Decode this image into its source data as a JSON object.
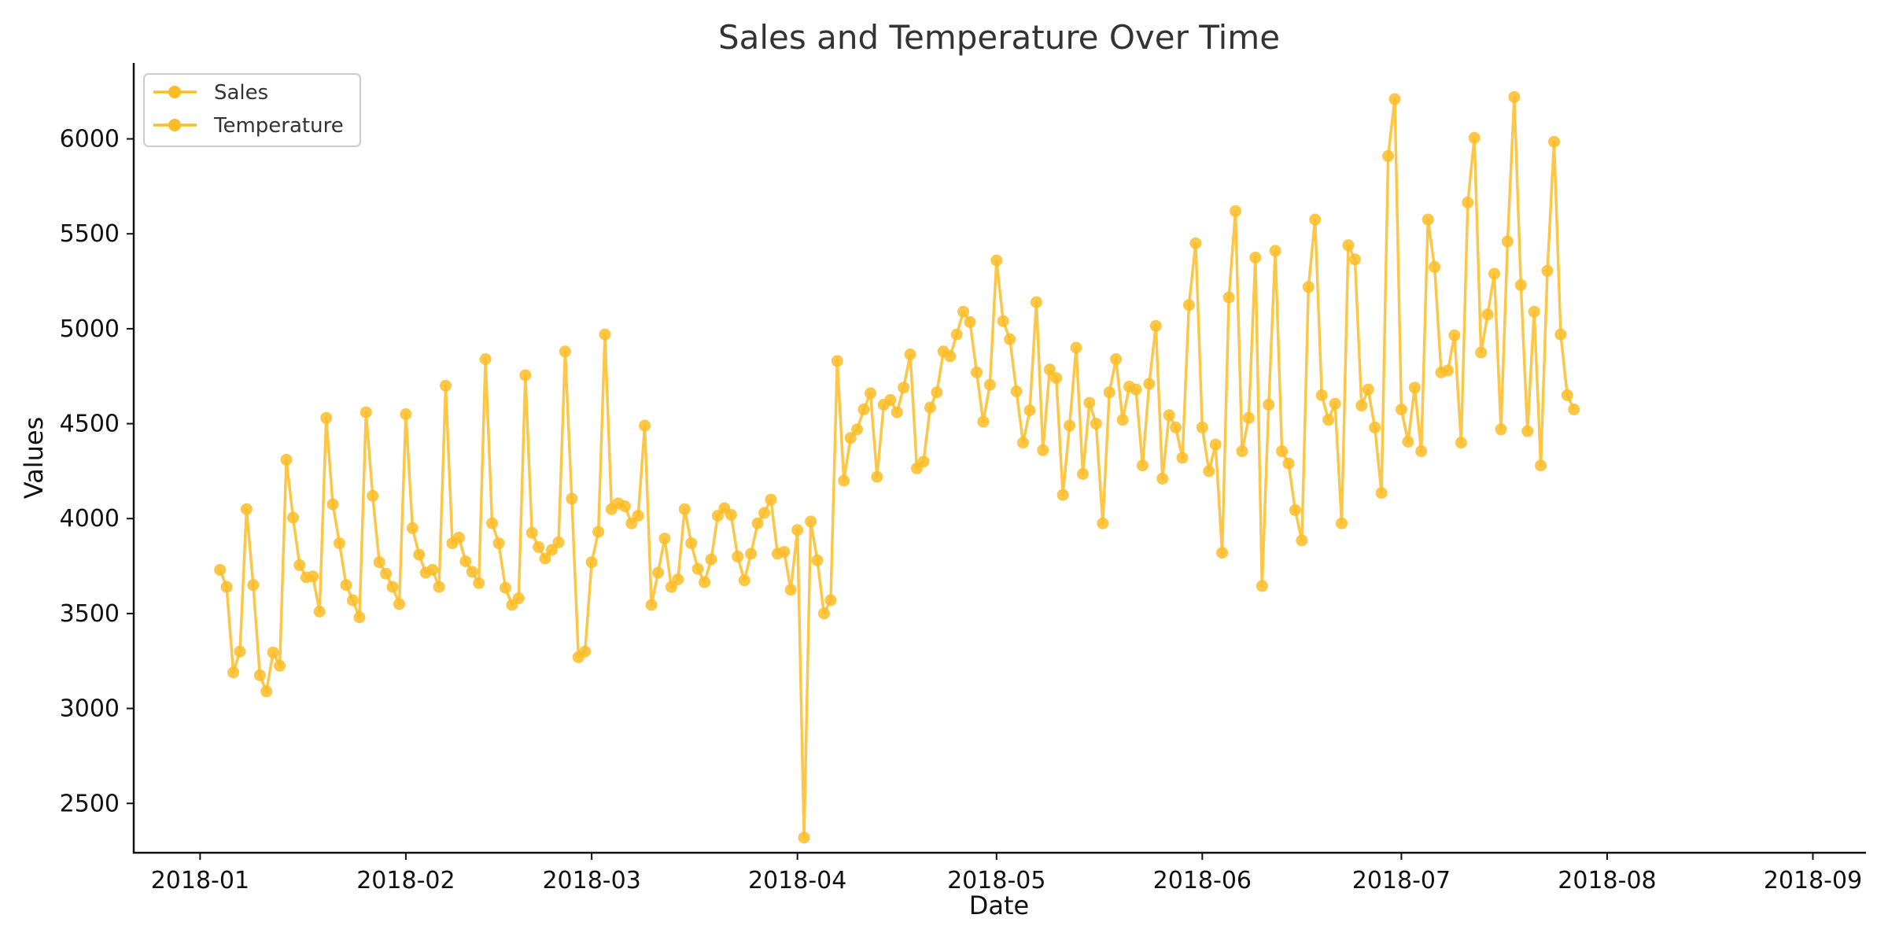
{
  "chart_data": {
    "type": "line",
    "title": "Sales and Temperature Over Time",
    "xlabel": "Date",
    "ylabel": "Values",
    "x_ticks": [
      "2018-01",
      "2018-02",
      "2018-03",
      "2018-04",
      "2018-05",
      "2018-06",
      "2018-07",
      "2018-08",
      "2018-09"
    ],
    "y_ticks": [
      2500,
      3000,
      3500,
      4000,
      4500,
      5000,
      5500,
      6000
    ],
    "xlim": [
      "2017-12-22",
      "2018-09-09"
    ],
    "ylim": [
      2240,
      6400
    ],
    "grid": false,
    "legend_position": "top-left",
    "legend": [
      "Sales",
      "Temperature"
    ],
    "series_color": "#FBBC27",
    "start_date": "2018-01-04",
    "series": [
      {
        "name": "Sales",
        "values": [
          3730,
          3640,
          3190,
          3300,
          4050,
          3650,
          3175,
          3090,
          3295,
          3225,
          4310,
          4005,
          3755,
          3690,
          3695,
          3510,
          4530,
          4075,
          3870,
          3650,
          3570,
          3480,
          4560,
          4120,
          3770,
          3710,
          3640,
          3550,
          4550,
          3950,
          3810,
          3715,
          3730,
          3640,
          4700,
          3870,
          3900,
          3775,
          3720,
          3660,
          4840,
          3975,
          3870,
          3635,
          3545,
          3580,
          4755,
          3925,
          3850,
          3790,
          3835,
          3875,
          4880,
          4105,
          3270,
          3300,
          3770,
          3930,
          4970,
          4050,
          4080,
          4065,
          3975,
          4015,
          4490,
          3545,
          3715,
          3895,
          3640,
          3680,
          4050,
          3870,
          3735,
          3665,
          3785,
          4015,
          4055,
          4020,
          3800,
          3675,
          3815,
          3975,
          4030,
          4100,
          3815,
          3825,
          3625,
          3940,
          2320,
          3985,
          3780,
          3500,
          3570,
          4830,
          4200,
          4425,
          4470,
          4575,
          4660,
          4220,
          4600,
          4625,
          4560,
          4690,
          4865,
          4265,
          4300,
          4585,
          4665,
          4880,
          4855,
          4970,
          5090,
          5035,
          4770,
          4510,
          4705,
          5360,
          5040,
          4945,
          4670,
          4400,
          4570,
          5140,
          4360,
          4785,
          4740,
          4125,
          4490,
          4900,
          4235,
          4610,
          4500,
          3975,
          4665,
          4840,
          4520,
          4695,
          4680,
          4280,
          4710,
          5015,
          4210,
          4545,
          4480,
          4320,
          5125,
          5450,
          4480,
          4250,
          4390,
          3820,
          5165,
          5620,
          4355,
          4530,
          5375,
          3645,
          4600,
          5410,
          4355,
          4290,
          4045,
          3885,
          5220,
          5575,
          4650,
          4520,
          4605,
          3975,
          5440,
          5365,
          4595,
          4680,
          4480,
          4135,
          5910,
          6210,
          4575,
          4405,
          4690,
          4355,
          5575,
          5325,
          4770,
          4780,
          4965,
          4400,
          5665,
          6005,
          4875,
          5075,
          5290,
          4470,
          5460,
          6220,
          5230,
          4460,
          5090,
          4280,
          5305,
          5985,
          4970,
          4650,
          4575
        ]
      }
    ]
  }
}
